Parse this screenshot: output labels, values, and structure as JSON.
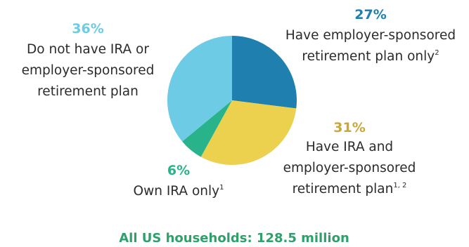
{
  "chart_data": {
    "type": "pie",
    "slices": [
      {
        "key": "employer_only",
        "value": 27,
        "percent_label": "27%",
        "label_lines": [
          "Have employer-sponsored",
          "retirement plan only"
        ],
        "footnote": "2",
        "color": "#1f7fae",
        "label_color": "#1f7fae"
      },
      {
        "key": "ira_and_employer",
        "value": 31,
        "percent_label": "31%",
        "label_lines": [
          "Have IRA and",
          "employer-sponsored",
          "retirement plan"
        ],
        "footnote": "1, 2",
        "color": "#ecd14f",
        "label_color": "#c9a73a"
      },
      {
        "key": "ira_only",
        "value": 6,
        "percent_label": "6%",
        "label_lines": [
          "Own IRA only"
        ],
        "footnote": "1",
        "color": "#28b38a",
        "label_color": "#28b38a"
      },
      {
        "key": "neither",
        "value": 36,
        "percent_label": "36%",
        "label_lines": [
          "Do not have IRA or",
          "employer-sponsored",
          "retirement plan"
        ],
        "footnote": "",
        "color": "#6dcbe5",
        "label_color": "#6dcbe5"
      }
    ],
    "total_label": "All US households: 128.5 million",
    "total_color": "#2ea06b"
  }
}
